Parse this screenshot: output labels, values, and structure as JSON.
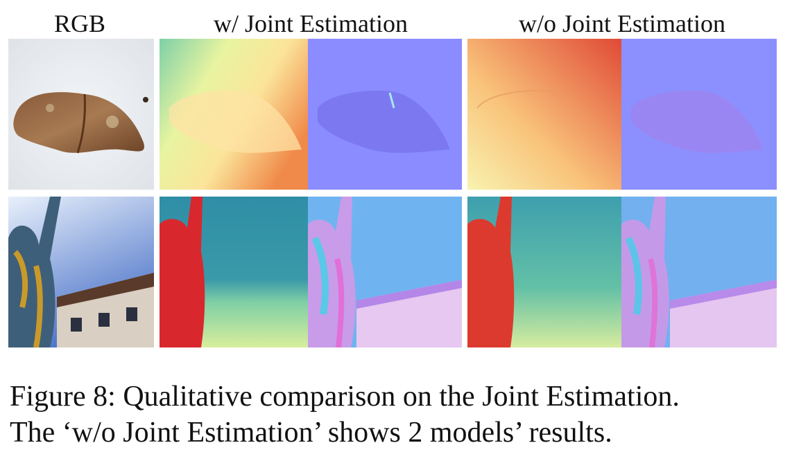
{
  "figure": {
    "headers": {
      "rgb": "RGB",
      "with_joint": "w/ Joint Estimation",
      "without_joint": "w/o Joint Estimation"
    },
    "caption_line1": "Figure 8:  Qualitative comparison on the Joint Estimation.",
    "caption_line2": "The ‘w/o Joint Estimation’ shows 2 models’ results."
  }
}
